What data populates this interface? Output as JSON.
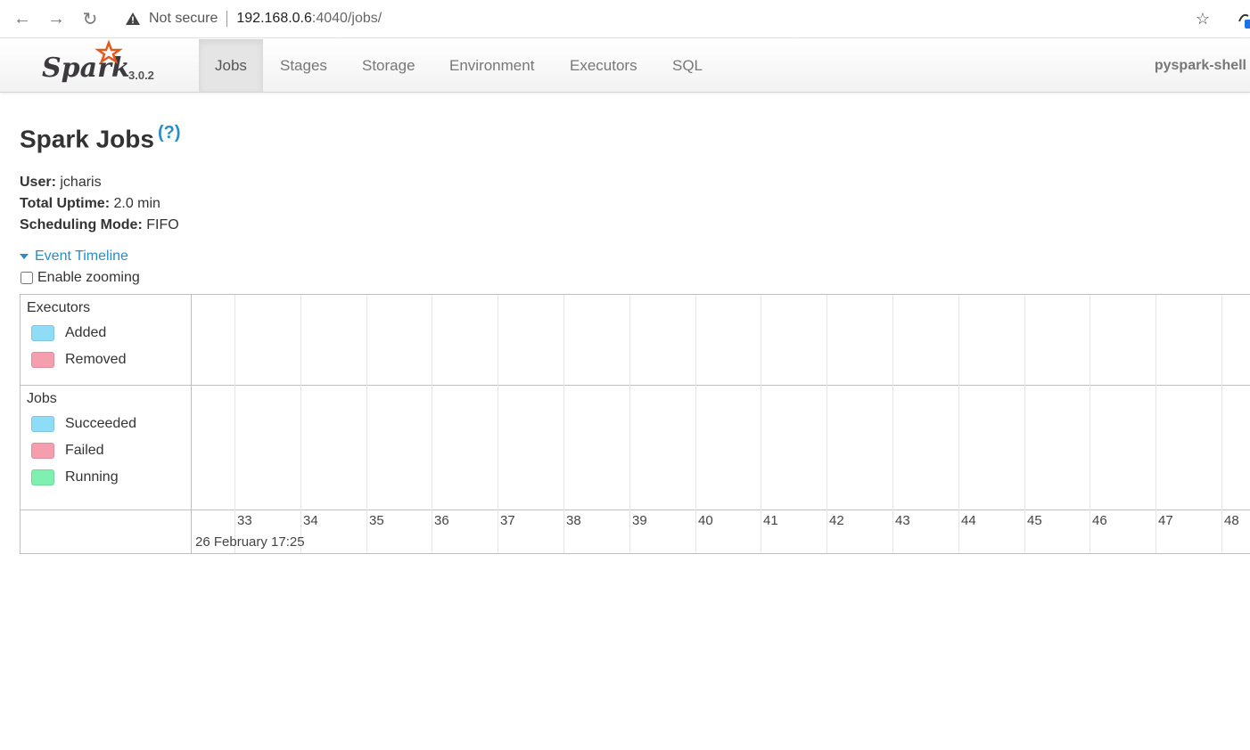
{
  "browser": {
    "security_label": "Not secure",
    "url_host": "192.168.0.6",
    "url_path": ":4040/jobs/"
  },
  "navbar": {
    "brand_version": "3.0.2",
    "tabs": [
      {
        "label": "Jobs",
        "active": true
      },
      {
        "label": "Stages"
      },
      {
        "label": "Storage"
      },
      {
        "label": "Environment"
      },
      {
        "label": "Executors"
      },
      {
        "label": "SQL"
      }
    ],
    "app_name": "pyspark-shell"
  },
  "page": {
    "title": "Spark Jobs",
    "help": "(?)",
    "user_label": "User:",
    "user_value": "jcharis",
    "uptime_label": "Total Uptime:",
    "uptime_value": "2.0 min",
    "mode_label": "Scheduling Mode:",
    "mode_value": "FIFO",
    "timeline_toggle": "Event Timeline",
    "zoom_label": "Enable zooming"
  },
  "timeline": {
    "executors": {
      "title": "Executors",
      "legend": [
        {
          "label": "Added",
          "color": "#8fdcf7"
        },
        {
          "label": "Removed",
          "color": "#f59fae"
        }
      ]
    },
    "jobs": {
      "title": "Jobs",
      "legend": [
        {
          "label": "Succeeded",
          "color": "#8fdcf7"
        },
        {
          "label": "Failed",
          "color": "#f59fae"
        },
        {
          "label": "Running",
          "color": "#7ff0b0"
        }
      ]
    },
    "ticks": [
      "33",
      "34",
      "35",
      "36",
      "37",
      "38",
      "39",
      "40",
      "41",
      "42",
      "43",
      "44",
      "45",
      "46",
      "47",
      "48"
    ],
    "date_label": "26 February 17:25"
  }
}
